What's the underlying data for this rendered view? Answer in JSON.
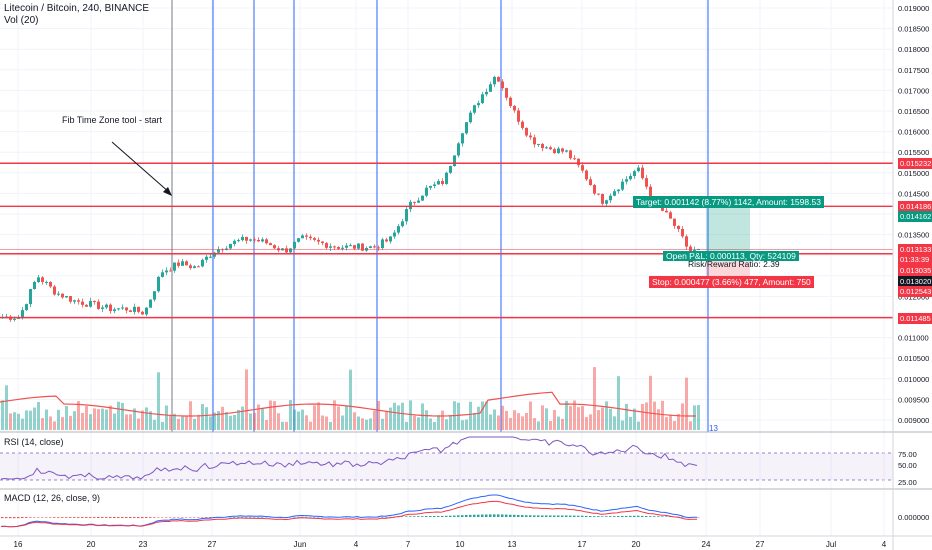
{
  "header": {
    "title": "Litecoin / Bitcoin, 240, BINANCE",
    "volume_label": "Vol (20)",
    "rsi_label": "RSI (14, close)",
    "macd_label": "MACD (12, 26, close, 9)"
  },
  "annotations": {
    "fib_note": "Fib Time Zone tool - start",
    "fib_last_count": "13"
  },
  "position": {
    "target": "Target: 0.001142 (8.77%) 1142, Amount: 1598.53",
    "stop": "Stop: 0.000477 (3.66%) 477, Amount: 750",
    "open_pnl": "Open P&L: 0.000113, Qty: 524109",
    "ratio": "Risk/Reward Ratio: 2.39"
  },
  "price_axis": {
    "ticks": [
      "0.019000",
      "0.018500",
      "0.018000",
      "0.017500",
      "0.017000",
      "0.016500",
      "0.016000",
      "0.015500",
      "0.015000",
      "0.014500",
      "0.014000",
      "0.013500",
      "0.013000",
      "0.012500",
      "0.012000",
      "0.011500",
      "0.011000",
      "0.010500",
      "0.010000",
      "0.009500",
      "0.009000"
    ],
    "levels": [
      {
        "text": "0.015232",
        "color": "#f23645"
      },
      {
        "text": "0.014186",
        "color": "#f23645"
      },
      {
        "text": "0.014162",
        "color": "#089981"
      },
      {
        "text": "0.013133",
        "color": "#f23645"
      },
      {
        "text": "01:33:39",
        "color": "#f23645"
      },
      {
        "text": "0.013035",
        "color": "#f23645"
      },
      {
        "text": "0.013020",
        "color": "#131722"
      },
      {
        "text": "0.012543",
        "color": "#f23645"
      },
      {
        "text": "0.011485",
        "color": "#f23645"
      }
    ]
  },
  "rsi_axis": [
    "75.00",
    "50.00",
    "25.00"
  ],
  "macd_axis": [
    "0.000000"
  ],
  "time_axis": [
    "16",
    "20",
    "23",
    "27",
    "Jun",
    "4",
    "7",
    "10",
    "13",
    "17",
    "20",
    "24",
    "27",
    "Jul",
    "4"
  ],
  "colors": {
    "up": "#26a69a",
    "down": "#ef5350",
    "line": "#f23645",
    "fib": "#2962ff",
    "rsi": "#7e57c2"
  },
  "chart_data": {
    "type": "candlestick",
    "symbol": "Litecoin / Bitcoin",
    "interval": "240",
    "exchange": "BINANCE",
    "trend_points": [
      {
        "x": "16",
        "close": 0.0115
      },
      {
        "x": "17",
        "close": 0.0125
      },
      {
        "x": "18",
        "close": 0.0121
      },
      {
        "x": "19",
        "close": 0.0119
      },
      {
        "x": "20",
        "close": 0.0118
      },
      {
        "x": "21",
        "close": 0.0117
      },
      {
        "x": "22",
        "close": 0.0117
      },
      {
        "x": "23",
        "close": 0.0116
      },
      {
        "x": "24",
        "close": 0.0126
      },
      {
        "x": "25",
        "close": 0.0128
      },
      {
        "x": "26",
        "close": 0.0127
      },
      {
        "x": "27",
        "close": 0.0131
      },
      {
        "x": "28",
        "close": 0.0133
      },
      {
        "x": "29",
        "close": 0.0134
      },
      {
        "x": "30",
        "close": 0.0133
      },
      {
        "x": "31",
        "close": 0.0131
      },
      {
        "x": "Jun 1",
        "close": 0.0134
      },
      {
        "x": "2",
        "close": 0.0133
      },
      {
        "x": "3",
        "close": 0.0132
      },
      {
        "x": "4",
        "close": 0.0132
      },
      {
        "x": "5",
        "close": 0.0132
      },
      {
        "x": "6",
        "close": 0.0134
      },
      {
        "x": "7",
        "close": 0.0142
      },
      {
        "x": "8",
        "close": 0.0146
      },
      {
        "x": "9",
        "close": 0.0148
      },
      {
        "x": "10",
        "close": 0.016
      },
      {
        "x": "11",
        "close": 0.0168
      },
      {
        "x": "12",
        "close": 0.0174
      },
      {
        "x": "13",
        "close": 0.0165
      },
      {
        "x": "14",
        "close": 0.0158
      },
      {
        "x": "15",
        "close": 0.0156
      },
      {
        "x": "16",
        "close": 0.0155
      },
      {
        "x": "17",
        "close": 0.015
      },
      {
        "x": "18",
        "close": 0.0143
      },
      {
        "x": "19",
        "close": 0.0147
      },
      {
        "x": "20",
        "close": 0.0151
      },
      {
        "x": "21",
        "close": 0.0143
      },
      {
        "x": "22",
        "close": 0.0138
      },
      {
        "x": "23",
        "close": 0.0131
      }
    ],
    "horizontal_levels": [
      0.015232,
      0.014186,
      0.013035,
      0.011485
    ],
    "ylim": [
      0.0088,
      0.0192
    ]
  }
}
